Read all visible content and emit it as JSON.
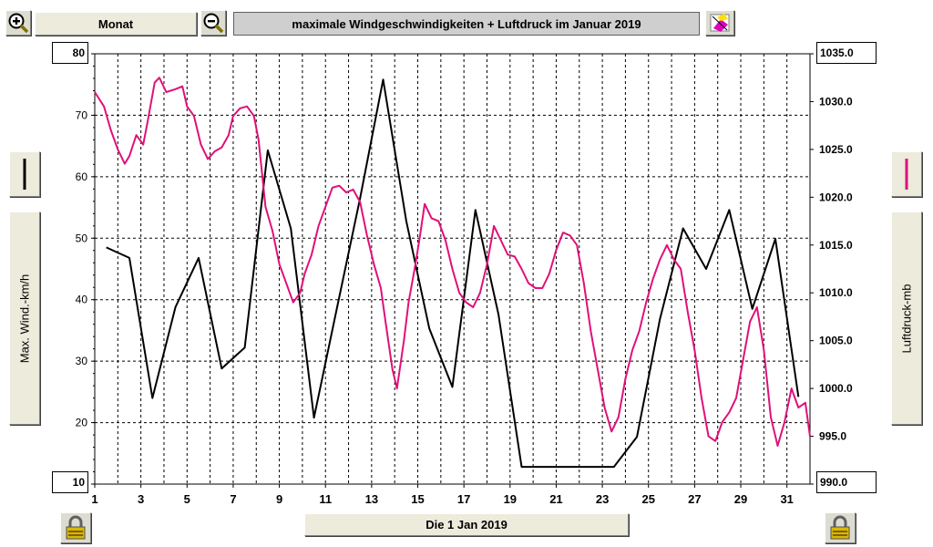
{
  "toolbar": {
    "zoom_in_icon": "zoom-in-icon",
    "period_label": "Monat",
    "zoom_out_icon": "zoom-out-icon",
    "title": "maximale Windgeschwindigkeiten + Luftdruck im Januar 2019",
    "eraser_icon": "eraser-icon"
  },
  "left_axis": {
    "label": "Max. Wind.-km/h",
    "max_box": "80",
    "min_box": "10",
    "line_color": "#000000"
  },
  "right_axis": {
    "label": "Luftdruck-mb",
    "max_box": "1035.0",
    "min_box": "990.0",
    "line_color": "#e0107a"
  },
  "footer": {
    "date_label": "Die 1 Jan 2019",
    "lock_icon": "lock-icon"
  },
  "chart_data": {
    "type": "line",
    "title": "maximale Windgeschwindigkeiten + Luftdruck im Januar 2019",
    "x_label": "",
    "xlim": [
      1,
      32
    ],
    "x_ticks": [
      1,
      3,
      5,
      7,
      9,
      11,
      13,
      15,
      17,
      19,
      21,
      23,
      25,
      27,
      29,
      31
    ],
    "y_left": {
      "label": "Max. Wind.-km/h",
      "ylim": [
        10,
        80
      ],
      "ticks": [
        10,
        20,
        30,
        40,
        50,
        60,
        70,
        80
      ]
    },
    "y_right": {
      "label": "Luftdruck-mb",
      "ylim": [
        990,
        1035
      ],
      "ticks": [
        990.0,
        995.0,
        1000.0,
        1005.0,
        1010.0,
        1015.0,
        1020.0,
        1025.0,
        1030.0,
        1035.0
      ]
    },
    "grid": true,
    "series": [
      {
        "axis": "left",
        "color": "#000000",
        "points": [
          [
            1.5,
            48.5
          ],
          [
            2.5,
            46.8
          ],
          [
            3.5,
            24
          ],
          [
            4.5,
            38.8
          ],
          [
            5.5,
            46.8
          ],
          [
            6.5,
            28.8
          ],
          [
            7.5,
            32.2
          ],
          [
            8.5,
            64.3
          ],
          [
            9.5,
            51.6
          ],
          [
            10.5,
            20.8
          ],
          [
            11.5,
            38.7
          ],
          [
            12.5,
            56.5
          ],
          [
            13.5,
            75.8
          ],
          [
            14.5,
            52.8
          ],
          [
            15.5,
            35.3
          ],
          [
            16.5,
            25.8
          ],
          [
            17.5,
            54.6
          ],
          [
            18.5,
            37.6
          ],
          [
            19.5,
            12.8
          ],
          [
            20.5,
            12.8
          ],
          [
            21.5,
            12.8
          ],
          [
            22.5,
            12.8
          ],
          [
            23.5,
            12.8
          ],
          [
            24.5,
            17.7
          ],
          [
            25.5,
            36.9
          ],
          [
            26.5,
            51.6
          ],
          [
            27.5,
            45
          ],
          [
            28.5,
            54.6
          ],
          [
            29.5,
            38.5
          ],
          [
            30.5,
            49.9
          ],
          [
            31.5,
            24.2
          ]
        ]
      },
      {
        "axis": "right",
        "color": "#e0107a",
        "points": [
          [
            1,
            1031
          ],
          [
            1.4,
            1029.5
          ],
          [
            1.7,
            1027
          ],
          [
            2,
            1025
          ],
          [
            2.3,
            1023.5
          ],
          [
            2.5,
            1024.3
          ],
          [
            2.8,
            1026.5
          ],
          [
            3.1,
            1025.5
          ],
          [
            3.3,
            1028
          ],
          [
            3.6,
            1032
          ],
          [
            3.8,
            1032.5
          ],
          [
            4.1,
            1031
          ],
          [
            4.5,
            1031.3
          ],
          [
            4.8,
            1031.6
          ],
          [
            5,
            1029.5
          ],
          [
            5.3,
            1028.5
          ],
          [
            5.6,
            1025.5
          ],
          [
            5.9,
            1024
          ],
          [
            6.2,
            1024.8
          ],
          [
            6.5,
            1025.2
          ],
          [
            6.8,
            1026.5
          ],
          [
            7,
            1028.5
          ],
          [
            7.3,
            1029.3
          ],
          [
            7.6,
            1029.5
          ],
          [
            7.9,
            1028.5
          ],
          [
            8.1,
            1026
          ],
          [
            8.4,
            1019
          ],
          [
            8.7,
            1016.5
          ],
          [
            9,
            1013
          ],
          [
            9.3,
            1011
          ],
          [
            9.6,
            1009
          ],
          [
            9.9,
            1010
          ],
          [
            10.1,
            1012
          ],
          [
            10.4,
            1014
          ],
          [
            10.7,
            1017
          ],
          [
            11,
            1019
          ],
          [
            11.3,
            1021
          ],
          [
            11.6,
            1021.2
          ],
          [
            11.9,
            1020.5
          ],
          [
            12.2,
            1020.8
          ],
          [
            12.5,
            1019.5
          ],
          [
            12.8,
            1016
          ],
          [
            13.1,
            1013
          ],
          [
            13.4,
            1010.5
          ],
          [
            13.6,
            1007
          ],
          [
            13.9,
            1002
          ],
          [
            14.1,
            1000
          ],
          [
            14.4,
            1005
          ],
          [
            14.6,
            1009
          ],
          [
            14.9,
            1013
          ],
          [
            15.1,
            1016
          ],
          [
            15.3,
            1019.3
          ],
          [
            15.6,
            1017.8
          ],
          [
            15.9,
            1017.5
          ],
          [
            16.2,
            1015.5
          ],
          [
            16.5,
            1012.5
          ],
          [
            16.8,
            1010
          ],
          [
            17.1,
            1009
          ],
          [
            17.4,
            1008.5
          ],
          [
            17.7,
            1010
          ],
          [
            18,
            1013
          ],
          [
            18.3,
            1017
          ],
          [
            18.6,
            1015.5
          ],
          [
            18.9,
            1014
          ],
          [
            19.2,
            1013.8
          ],
          [
            19.5,
            1012.5
          ],
          [
            19.8,
            1011
          ],
          [
            20.1,
            1010.5
          ],
          [
            20.4,
            1010.5
          ],
          [
            20.7,
            1012
          ],
          [
            21,
            1014.5
          ],
          [
            21.3,
            1016.3
          ],
          [
            21.6,
            1016
          ],
          [
            21.9,
            1015
          ],
          [
            22.2,
            1011
          ],
          [
            22.5,
            1006
          ],
          [
            22.8,
            1002
          ],
          [
            23.1,
            998
          ],
          [
            23.4,
            995.5
          ],
          [
            23.7,
            997
          ],
          [
            24,
            1001
          ],
          [
            24.3,
            1004
          ],
          [
            24.6,
            1006
          ],
          [
            24.9,
            1009
          ],
          [
            25.2,
            1011.5
          ],
          [
            25.5,
            1013.5
          ],
          [
            25.8,
            1015
          ],
          [
            26.1,
            1013.5
          ],
          [
            26.4,
            1012.5
          ],
          [
            26.7,
            1008
          ],
          [
            27,
            1004
          ],
          [
            27.3,
            999
          ],
          [
            27.6,
            995
          ],
          [
            27.9,
            994.5
          ],
          [
            28.2,
            996.5
          ],
          [
            28.5,
            997.5
          ],
          [
            28.8,
            999
          ],
          [
            29.1,
            1003
          ],
          [
            29.4,
            1007
          ],
          [
            29.7,
            1008.5
          ],
          [
            30,
            1004
          ],
          [
            30.3,
            997
          ],
          [
            30.6,
            994
          ],
          [
            30.9,
            996.5
          ],
          [
            31.2,
            1000
          ],
          [
            31.5,
            998
          ],
          [
            31.8,
            998.5
          ],
          [
            32,
            995
          ]
        ]
      }
    ]
  }
}
